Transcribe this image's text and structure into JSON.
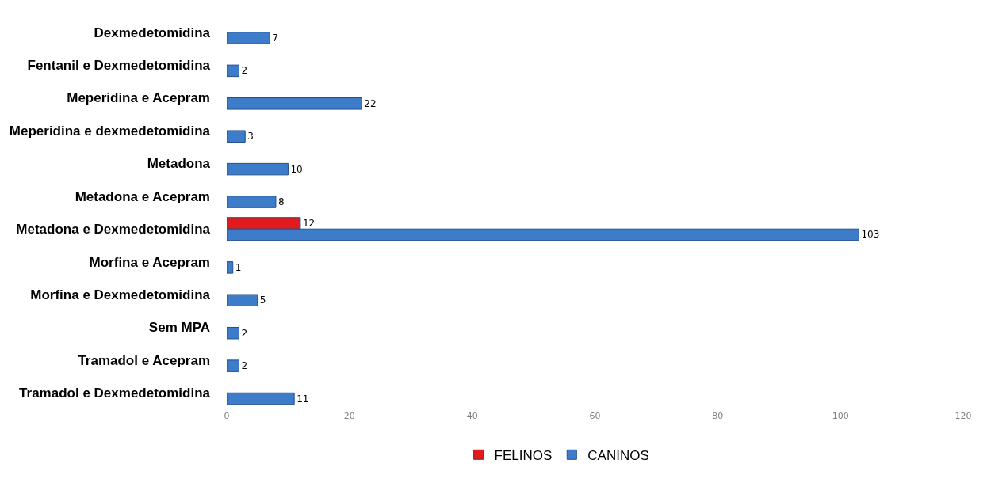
{
  "chart_data": {
    "type": "bar",
    "orientation": "horizontal",
    "categories": [
      "Dexmedetomidina",
      "Fentanil e Dexmedetomidina",
      "Meperidina e Acepram",
      "Meperidina e dexmedetomidina",
      "Metadona",
      "Metadona e Acepram",
      "Metadona e Dexmedetomidina",
      "Morfina e Acepram",
      "Morfina e Dexmedetomidina",
      "Sem MPA",
      "Tramadol e Acepram",
      "Tramadol e Dexmedetomidina"
    ],
    "series": [
      {
        "name": "FELINOS",
        "color": "#e31a1c",
        "values": [
          null,
          null,
          null,
          null,
          null,
          null,
          12,
          null,
          null,
          null,
          null,
          null
        ]
      },
      {
        "name": "CANINOS",
        "color": "#3d7cc9",
        "values": [
          7,
          2,
          22,
          3,
          10,
          8,
          103,
          1,
          5,
          2,
          2,
          11
        ]
      }
    ],
    "xlim": [
      0,
      120
    ],
    "xticks": [
      0,
      20,
      40,
      60,
      80,
      100,
      120
    ],
    "data_labels": true,
    "legend": "bottom"
  }
}
